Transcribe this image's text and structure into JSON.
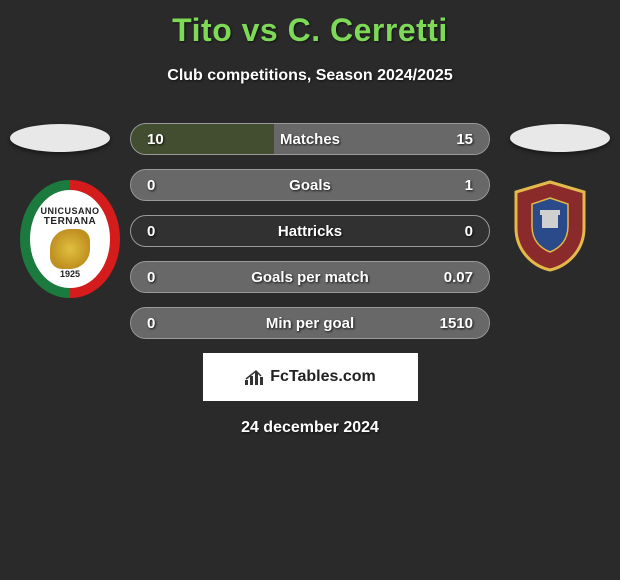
{
  "header": {
    "title": "Tito vs C. Cerretti",
    "subtitle": "Club competitions, Season 2024/2025"
  },
  "footer": {
    "date": "24 december 2024",
    "brand": "FcTables.com"
  },
  "badges": {
    "left": {
      "line1": "UNICUSANO",
      "line2": "TERNANA",
      "year": "1925",
      "colors": {
        "outer_left": "#1b7a3d",
        "outer_right": "#d41c1c",
        "inner": "#ffffff",
        "emblem": "#e0c040"
      }
    },
    "right": {
      "colors": {
        "border": "#e2b94a",
        "field": "#8b2a2a",
        "crest": "#2a4a8a"
      }
    }
  },
  "stats": {
    "rows": [
      {
        "label": "Matches",
        "left": "10",
        "right": "15",
        "left_pct": 40,
        "right_pct": 60
      },
      {
        "label": "Goals",
        "left": "0",
        "right": "1",
        "left_pct": 0,
        "right_pct": 100
      },
      {
        "label": "Hattricks",
        "left": "0",
        "right": "0",
        "left_pct": 0,
        "right_pct": 0
      },
      {
        "label": "Goals per match",
        "left": "0",
        "right": "0.07",
        "left_pct": 0,
        "right_pct": 100
      },
      {
        "label": "Min per goal",
        "left": "0",
        "right": "1510",
        "left_pct": 0,
        "right_pct": 100
      }
    ],
    "style": {
      "border_color": "#9a9a9a",
      "left_fill": "#556b2f",
      "right_fill": "#d0d0d0",
      "text_color": "#ffffff"
    }
  },
  "colors": {
    "background": "#2a2a2a",
    "title": "#7ed957",
    "subtitle": "#ffffff",
    "brand_bg": "#ffffff",
    "brand_text": "#222222"
  }
}
